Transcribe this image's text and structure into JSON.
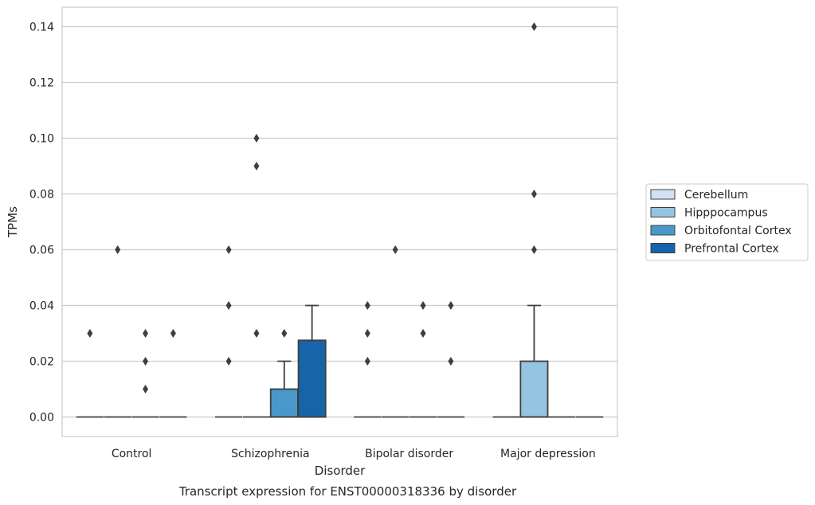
{
  "chart_data": {
    "type": "box",
    "caption": "Transcript expression for ENST00000318336 by disorder",
    "xlabel": "Disorder",
    "ylabel": "TPMs",
    "ylim": [
      -0.007,
      0.147
    ],
    "yticks": [
      0.0,
      0.02,
      0.04,
      0.06,
      0.08,
      0.1,
      0.12,
      0.14
    ],
    "ytick_labels": [
      "0.00",
      "0.02",
      "0.04",
      "0.06",
      "0.08",
      "0.10",
      "0.12",
      "0.14"
    ],
    "grid": true,
    "legend_position": "right",
    "categories": [
      "Control",
      "Schizophrenia",
      "Bipolar disorder",
      "Major depression"
    ],
    "series": [
      {
        "name": "Cerebellum",
        "color": "#d0e1f2",
        "boxes": [
          {
            "category": "Control",
            "q1": 0,
            "median": 0,
            "q3": 0,
            "whisker_low": 0,
            "whisker_high": 0,
            "outliers": [
              0.03
            ]
          },
          {
            "category": "Schizophrenia",
            "q1": 0,
            "median": 0,
            "q3": 0,
            "whisker_low": 0,
            "whisker_high": 0,
            "outliers": [
              0.02,
              0.04,
              0.06
            ]
          },
          {
            "category": "Bipolar disorder",
            "q1": 0,
            "median": 0,
            "q3": 0,
            "whisker_low": 0,
            "whisker_high": 0,
            "outliers": [
              0.02,
              0.03,
              0.04
            ]
          },
          {
            "category": "Major depression",
            "q1": 0,
            "median": 0,
            "q3": 0,
            "whisker_low": 0,
            "whisker_high": 0,
            "outliers": []
          }
        ]
      },
      {
        "name": "Hipppocampus",
        "color": "#94c4df",
        "boxes": [
          {
            "category": "Control",
            "q1": 0,
            "median": 0,
            "q3": 0,
            "whisker_low": 0,
            "whisker_high": 0,
            "outliers": [
              0.06
            ]
          },
          {
            "category": "Schizophrenia",
            "q1": 0,
            "median": 0,
            "q3": 0,
            "whisker_low": 0,
            "whisker_high": 0,
            "outliers": [
              0.03,
              0.09,
              0.1
            ]
          },
          {
            "category": "Bipolar disorder",
            "q1": 0,
            "median": 0,
            "q3": 0,
            "whisker_low": 0,
            "whisker_high": 0,
            "outliers": [
              0.06
            ]
          },
          {
            "category": "Major depression",
            "q1": 0,
            "median": 0,
            "q3": 0.02,
            "whisker_low": 0,
            "whisker_high": 0.04,
            "outliers": [
              0.06,
              0.08,
              0.14
            ]
          }
        ]
      },
      {
        "name": "Orbitofontal Cortex",
        "color": "#4a98c9",
        "boxes": [
          {
            "category": "Control",
            "q1": 0,
            "median": 0,
            "q3": 0,
            "whisker_low": 0,
            "whisker_high": 0,
            "outliers": [
              0.02,
              0.03,
              0.01
            ]
          },
          {
            "category": "Schizophrenia",
            "q1": 0,
            "median": 0,
            "q3": 0.01,
            "whisker_low": 0,
            "whisker_high": 0.02,
            "outliers": [
              0.03
            ]
          },
          {
            "category": "Bipolar disorder",
            "q1": 0,
            "median": 0,
            "q3": 0,
            "whisker_low": 0,
            "whisker_high": 0,
            "outliers": [
              0.03,
              0.04
            ]
          },
          {
            "category": "Major depression",
            "q1": 0,
            "median": 0,
            "q3": 0,
            "whisker_low": 0,
            "whisker_high": 0,
            "outliers": []
          }
        ]
      },
      {
        "name": "Prefrontal Cortex",
        "color": "#1764ab",
        "boxes": [
          {
            "category": "Control",
            "q1": 0,
            "median": 0,
            "q3": 0,
            "whisker_low": 0,
            "whisker_high": 0,
            "outliers": [
              0.03
            ]
          },
          {
            "category": "Schizophrenia",
            "q1": 0,
            "median": 0,
            "q3": 0.0275,
            "whisker_low": 0,
            "whisker_high": 0.04,
            "outliers": []
          },
          {
            "category": "Bipolar disorder",
            "q1": 0,
            "median": 0,
            "q3": 0,
            "whisker_low": 0,
            "whisker_high": 0,
            "outliers": [
              0.02,
              0.04
            ]
          },
          {
            "category": "Major depression",
            "q1": 0,
            "median": 0,
            "q3": 0,
            "whisker_low": 0,
            "whisker_high": 0,
            "outliers": []
          }
        ]
      }
    ]
  }
}
